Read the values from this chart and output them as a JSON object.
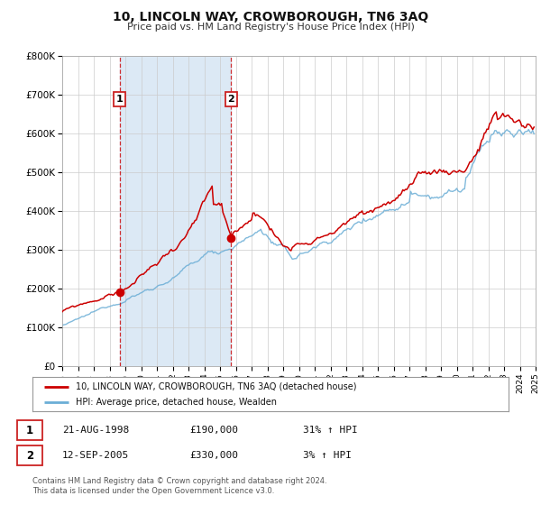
{
  "title": "10, LINCOLN WAY, CROWBOROUGH, TN6 3AQ",
  "subtitle": "Price paid vs. HM Land Registry's House Price Index (HPI)",
  "legend_line1": "10, LINCOLN WAY, CROWBOROUGH, TN6 3AQ (detached house)",
  "legend_line2": "HPI: Average price, detached house, Wealden",
  "transaction1_date": "21-AUG-1998",
  "transaction1_price": "£190,000",
  "transaction1_hpi": "31% ↑ HPI",
  "transaction1_year": 1998.64,
  "transaction1_value": 190000,
  "transaction2_date": "12-SEP-2005",
  "transaction2_price": "£330,000",
  "transaction2_hpi": "3% ↑ HPI",
  "transaction2_year": 2005.7,
  "transaction2_value": 330000,
  "footer_line1": "Contains HM Land Registry data © Crown copyright and database right 2024.",
  "footer_line2": "This data is licensed under the Open Government Licence v3.0.",
  "hpi_color": "#6baed6",
  "price_color": "#cc0000",
  "shading_color": "#dce9f5",
  "background_color": "#ffffff",
  "plot_bg_color": "#ffffff",
  "grid_color": "#cccccc",
  "ylim_min": 0,
  "ylim_max": 800000,
  "xlim_min": 1995,
  "xlim_max": 2025,
  "yticks": [
    0,
    100000,
    200000,
    300000,
    400000,
    500000,
    600000,
    700000,
    800000
  ],
  "ytick_labels": [
    "£0",
    "£100K",
    "£200K",
    "£300K",
    "£400K",
    "£500K",
    "£600K",
    "£700K",
    "£800K"
  ],
  "xticks": [
    1995,
    1996,
    1997,
    1998,
    1999,
    2000,
    2001,
    2002,
    2003,
    2004,
    2005,
    2006,
    2007,
    2008,
    2009,
    2010,
    2011,
    2012,
    2013,
    2014,
    2015,
    2016,
    2017,
    2018,
    2019,
    2020,
    2021,
    2022,
    2023,
    2024,
    2025
  ]
}
